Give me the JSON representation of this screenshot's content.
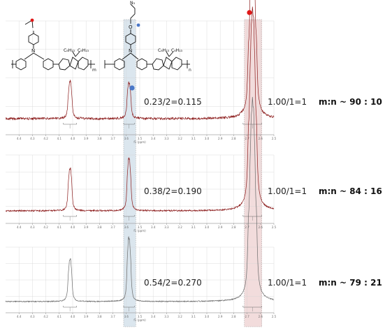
{
  "colors": {
    "trace": "#8c1c1c",
    "grid": "#d4d4d4",
    "red_marker": "#e01818",
    "blue_marker": "#4a78c8",
    "red_band": "#f2dcdc",
    "blue_band": "#dbe6ee"
  },
  "structure": {
    "alkyl_left": "C₆H₁₃",
    "alkyl_right": "C₆H₁₃",
    "azide": "N₃",
    "oxygen": "O",
    "nitrogen": "N",
    "sub_m": "m",
    "sub_n": "n",
    "alkyl_left_2": "C₆H₁₃",
    "alkyl_right_2": "C₆H₁₃"
  },
  "chart_data": {
    "type": "line",
    "x_axis": {
      "reversed": true,
      "range": [
        4.5,
        2.5
      ],
      "ticks": [
        "4.4",
        "4.3",
        "4.2",
        "4.1",
        "4.0",
        "3.9",
        "3.8",
        "3.7",
        "3.6",
        "3.5",
        "3.4",
        "3.3",
        "3.2",
        "3.1",
        "3.0",
        "2.9",
        "2.8",
        "2.7",
        "2.6",
        "2.5"
      ],
      "label": "f1 (ppm)"
    },
    "bands": [
      {
        "marker": "blue",
        "from": 3.62,
        "to": 3.53
      },
      {
        "marker": "red",
        "from": 2.72,
        "to": 2.59
      }
    ],
    "panels": [
      {
        "ratio_left": "0.23/2=0.115",
        "ratio_right": "1.00/1=1",
        "result": "m:n ~ 90 : 10",
        "integrals": [
          0.23,
          1.0
        ],
        "peaks": {
          "left": 4.02,
          "middle": 3.58,
          "right": 2.66
        }
      },
      {
        "ratio_left": "0.38/2=0.190",
        "ratio_right": "1.00/1=1",
        "result": "m:n ~ 84 : 16",
        "integrals": [
          0.38,
          1.0
        ],
        "peaks": {
          "left": 4.02,
          "middle": 3.58,
          "right": 2.66
        }
      },
      {
        "ratio_left": "0.54/2=0.270",
        "ratio_right": "1.00/1=1",
        "result": "m:n ~ 79 : 21",
        "integrals": [
          0.54,
          1.0
        ],
        "peaks": {
          "left": 4.02,
          "middle": 3.58,
          "right": 2.66
        }
      }
    ]
  }
}
